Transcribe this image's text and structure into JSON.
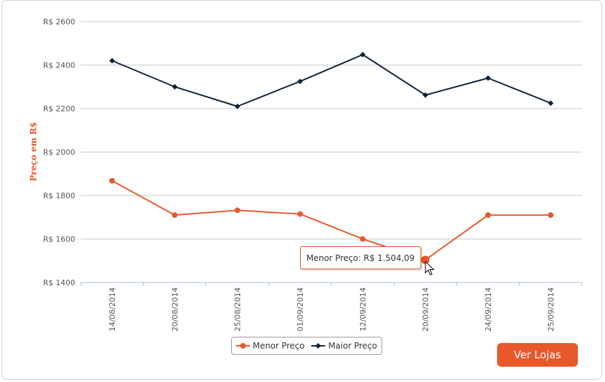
{
  "colors": {
    "accent": "#e8582a",
    "dark": "#0e2238",
    "grid": "#c8c8c8",
    "axis": "#a8c0d6"
  },
  "chart_data": {
    "type": "line",
    "ylabel": "Preço em R$",
    "ylim": [
      1400,
      2600
    ],
    "yticks": [
      1400,
      1600,
      1800,
      2000,
      2200,
      2400,
      2600
    ],
    "ytick_prefix": "R$ ",
    "categories": [
      "14/08/2014",
      "20/08/2014",
      "25/08/2014",
      "01/09/2014",
      "12/09/2014",
      "20/09/2014",
      "24/09/2014",
      "25/09/2014"
    ],
    "series": [
      {
        "name": "Menor Preço",
        "color": "#e8582a",
        "marker": "circle",
        "values": [
          1868,
          1710,
          1732,
          1715,
          1600,
          1504.09,
          1710,
          1710
        ]
      },
      {
        "name": "Maior Preço",
        "color": "#0e2238",
        "marker": "diamond",
        "values": [
          2420,
          2300,
          2210,
          2325,
          2448,
          2262,
          2340,
          2225
        ]
      }
    ],
    "grid": true,
    "legend": "bottom-center"
  },
  "tooltip": {
    "text": "Menor Preço: R$ 1.504,09"
  },
  "button": {
    "label": "Ver Lojas"
  }
}
